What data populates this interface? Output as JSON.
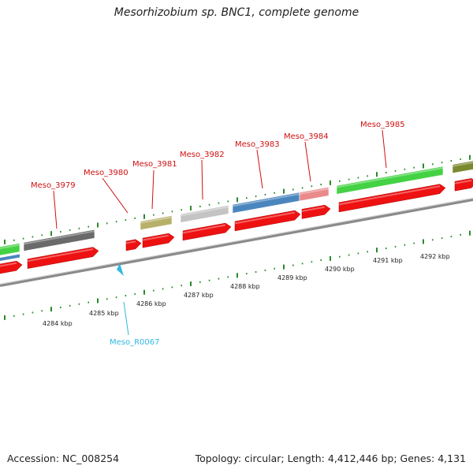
{
  "title": "Mesorhizobium sp. BNC1, complete genome",
  "footer": {
    "accession": "Accession: NC_008254",
    "summary": "Topology: circular; Length: 4,412,446 bp; Genes: 4,131"
  },
  "colors": {
    "cds": "#ee1111",
    "cog_gray": "#6a6a6a",
    "cog_lightgray": "#c4c4c4",
    "cog_olive": "#b7b06a",
    "cog_blue": "#4a86bd",
    "cog_pink": "#ea8a8a",
    "cog_green": "#44d244",
    "cog_darkolive": "#7a8a30",
    "rna": "#30b8e0",
    "tick": "#2a8a2a",
    "backbone": "#8a8a8a"
  },
  "gene_labels": [
    "Meso_3979",
    "Meso_3980",
    "Meso_3981",
    "Meso_3982",
    "Meso_3983",
    "Meso_3984",
    "Meso_3985"
  ],
  "rna_label": "Meso_R0067",
  "kbp_labels": [
    "4284 kbp",
    "4285 kbp",
    "4286 kbp",
    "4287 kbp",
    "4288 kbp",
    "4289 kbp",
    "4290 kbp",
    "4291 kbp",
    "4292 kbp"
  ]
}
